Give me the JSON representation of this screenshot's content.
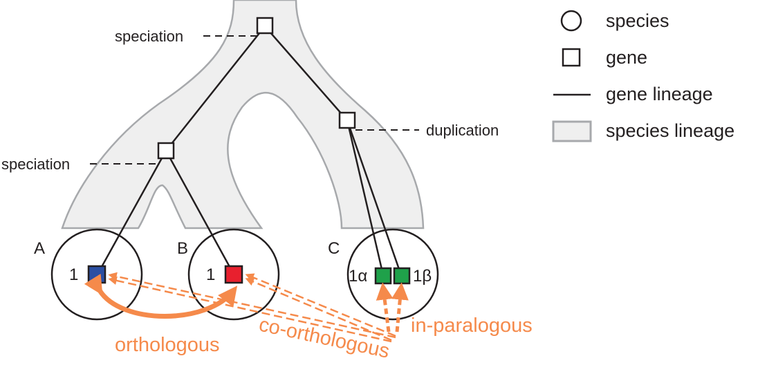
{
  "legend": {
    "species": "species",
    "gene": "gene",
    "gene_lineage": "gene lineage",
    "species_lineage": "species lineage"
  },
  "events": {
    "top_speciation": "speciation",
    "left_speciation": "speciation",
    "duplication": "duplication"
  },
  "species": {
    "a": "A",
    "b": "B",
    "c": "C"
  },
  "genes": {
    "a1": "1",
    "b1": "1",
    "c1_alpha": "1α",
    "c1_beta": "1β"
  },
  "relations": {
    "orthologous": "orthologous",
    "co_orthologous": "co-orthologous",
    "in_paralogous": "in-paralogous"
  },
  "colors": {
    "gene_a": "#2b4fa3",
    "gene_b": "#e8202e",
    "gene_c": "#1fa14a",
    "relation": "#f58a4b",
    "species_fill": "#efefef",
    "species_stroke": "#a7a9ac"
  }
}
